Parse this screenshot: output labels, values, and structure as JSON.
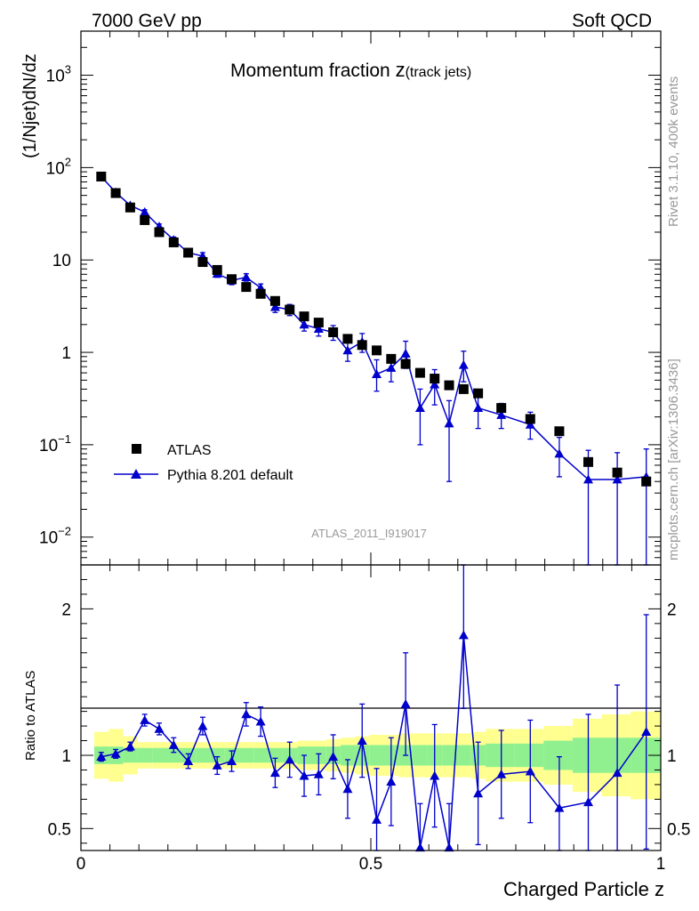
{
  "header": {
    "left": "7000 GeV pp",
    "right": "Soft QCD"
  },
  "side_labels": {
    "rivet": "Rivet 3.1.10,  400k events",
    "mcplots": "mcplots.cern.ch [arXiv:1306.3436]"
  },
  "chart_data": {
    "type": "scatter",
    "title_main": "Momentum fraction ",
    "title_var": "z",
    "title_sub": "(track jets)",
    "analysis_id": "ATLAS_2011_I919017",
    "xlabel": "Charged Particle z",
    "ylabel": "(1/Njet)dN/dz",
    "ratio_ylabel": "Ratio to ATLAS",
    "xlim": [
      0,
      1
    ],
    "ylim": [
      0.005,
      3000
    ],
    "yscale": "log",
    "ratio_ylim": [
      0.35,
      2.3
    ],
    "x_ticks": [
      {
        "v": 0,
        "label": "0"
      },
      {
        "v": 0.5,
        "label": "0.5"
      },
      {
        "v": 1,
        "label": "1"
      }
    ],
    "y_ticks": [
      {
        "v": 0.01,
        "base": "10",
        "exp": "−2"
      },
      {
        "v": 0.1,
        "base": "10",
        "exp": "−1"
      },
      {
        "v": 1,
        "base": "1",
        "exp": ""
      },
      {
        "v": 10,
        "base": "10",
        "exp": ""
      },
      {
        "v": 100,
        "base": "10",
        "exp": "2"
      },
      {
        "v": 1000,
        "base": "10",
        "exp": "3"
      }
    ],
    "ratio_ticks": [
      {
        "v": 0.5,
        "label": "0.5"
      },
      {
        "v": 1,
        "label": "1"
      },
      {
        "v": 2,
        "label": "2"
      }
    ],
    "legend": {
      "placement": "bottom-left",
      "data_label": "ATLAS",
      "mc_label": "Pythia 8.201 default"
    },
    "colors": {
      "data": "#000000",
      "mc": "#0000cc",
      "band_inner": "#90f090",
      "band_outer": "#ffff90"
    },
    "data": {
      "x": [
        0.035,
        0.06,
        0.085,
        0.11,
        0.135,
        0.16,
        0.185,
        0.21,
        0.235,
        0.26,
        0.285,
        0.31,
        0.335,
        0.36,
        0.385,
        0.41,
        0.435,
        0.46,
        0.485,
        0.51,
        0.535,
        0.56,
        0.585,
        0.61,
        0.635,
        0.66,
        0.685,
        0.725,
        0.775,
        0.825,
        0.875,
        0.925,
        0.975
      ],
      "y": [
        80,
        53,
        37,
        27,
        20,
        15.5,
        12,
        9.5,
        7.8,
        6.2,
        5.1,
        4.3,
        3.6,
        2.9,
        2.45,
        2.1,
        1.65,
        1.4,
        1.2,
        1.05,
        0.85,
        0.75,
        0.6,
        0.52,
        0.44,
        0.4,
        0.36,
        0.25,
        0.19,
        0.14,
        0.065,
        0.05,
        0.04
      ]
    },
    "mc": {
      "y": [
        80,
        54,
        39,
        33,
        23,
        16.5,
        12,
        11,
        7.1,
        6,
        6.5,
        5,
        3.1,
        2.9,
        2,
        1.8,
        1.65,
        1.05,
        1.3,
        0.58,
        0.68,
        0.97,
        0.25,
        0.45,
        0.17,
        0.73,
        0.25,
        0.21,
        0.165,
        0.08,
        0.042,
        0.042,
        0.045
      ],
      "err_lo": [
        3,
        2,
        1.5,
        2,
        1.5,
        1.2,
        1,
        1,
        0.6,
        0.6,
        0.6,
        0.5,
        0.4,
        0.4,
        0.3,
        0.3,
        0.3,
        0.25,
        0.3,
        0.2,
        0.2,
        0.3,
        0.15,
        0.18,
        0.13,
        0.25,
        0.1,
        0.06,
        0.05,
        0.035,
        0.04,
        0.04,
        0.04
      ],
      "err_hi": [
        3,
        2,
        1.5,
        2,
        1.5,
        1.2,
        1,
        1,
        0.6,
        0.6,
        0.6,
        0.5,
        0.4,
        0.4,
        0.3,
        0.3,
        0.3,
        0.25,
        0.3,
        0.25,
        0.25,
        0.35,
        0.15,
        0.2,
        0.13,
        0.3,
        0.1,
        0.07,
        0.06,
        0.04,
        0.045,
        0.04,
        0.045
      ]
    },
    "ratio": {
      "y": [
        0.99,
        1.01,
        1.06,
        1.24,
        1.18,
        1.07,
        0.96,
        1.2,
        0.93,
        0.96,
        1.28,
        1.23,
        0.88,
        0.97,
        0.86,
        0.87,
        0.99,
        0.77,
        1.1,
        0.56,
        0.82,
        1.35,
        0.37,
        0.86,
        0.37,
        1.82,
        0.74,
        0.87,
        0.89,
        0.64,
        0.68,
        0.88,
        1.16
      ],
      "err_lo": [
        0.03,
        0.03,
        0.03,
        0.04,
        0.04,
        0.05,
        0.05,
        0.06,
        0.06,
        0.07,
        0.08,
        0.1,
        0.1,
        0.12,
        0.14,
        0.14,
        0.15,
        0.2,
        0.25,
        0.35,
        0.3,
        0.35,
        0.3,
        0.35,
        0.3,
        0.5,
        0.35,
        0.3,
        0.35,
        0.35,
        0.6,
        0.6,
        0.8
      ],
      "err_hi": [
        0.03,
        0.03,
        0.03,
        0.04,
        0.04,
        0.05,
        0.05,
        0.06,
        0.06,
        0.07,
        0.08,
        0.1,
        0.1,
        0.12,
        0.14,
        0.14,
        0.15,
        0.2,
        0.25,
        0.35,
        0.3,
        0.35,
        0.3,
        0.35,
        0.3,
        0.5,
        0.35,
        0.3,
        0.35,
        0.35,
        0.6,
        0.6,
        0.8
      ]
    },
    "bands": {
      "edges": [
        0.023,
        0.048,
        0.073,
        0.098,
        0.123,
        0.148,
        0.173,
        0.198,
        0.223,
        0.248,
        0.273,
        0.298,
        0.323,
        0.348,
        0.373,
        0.398,
        0.423,
        0.448,
        0.473,
        0.498,
        0.523,
        0.548,
        0.573,
        0.598,
        0.623,
        0.648,
        0.673,
        0.698,
        0.748,
        0.798,
        0.848,
        0.898,
        0.948,
        1.0
      ],
      "inner": [
        0.06,
        0.06,
        0.05,
        0.05,
        0.05,
        0.05,
        0.05,
        0.05,
        0.05,
        0.05,
        0.05,
        0.05,
        0.05,
        0.05,
        0.06,
        0.06,
        0.06,
        0.07,
        0.07,
        0.07,
        0.07,
        0.07,
        0.07,
        0.07,
        0.07,
        0.07,
        0.07,
        0.08,
        0.08,
        0.1,
        0.12,
        0.12,
        0.12
      ],
      "outer": [
        0.16,
        0.18,
        0.13,
        0.09,
        0.09,
        0.09,
        0.09,
        0.09,
        0.09,
        0.09,
        0.09,
        0.09,
        0.09,
        0.09,
        0.1,
        0.1,
        0.11,
        0.12,
        0.13,
        0.14,
        0.14,
        0.15,
        0.15,
        0.15,
        0.15,
        0.15,
        0.16,
        0.18,
        0.18,
        0.2,
        0.25,
        0.28,
        0.3
      ]
    }
  }
}
